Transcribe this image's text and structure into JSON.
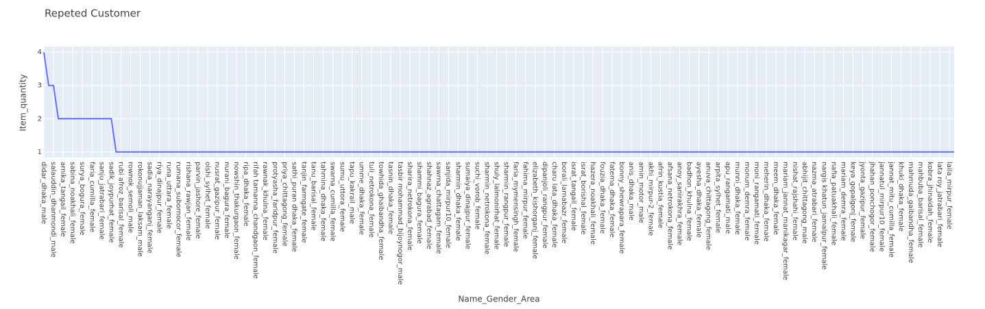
{
  "chart_data": {
    "type": "line",
    "title": "Repeted Customer",
    "x_label": "Name_Gender_Area",
    "y_label": "Item_quantity",
    "categories": [
      "didar_dhaka_male",
      null,
      "salauddin_dhanmondi_male",
      null,
      "arnika_tangail_female",
      null,
      "sabina_noakhali_female",
      null,
      "surya_bogura_female",
      null,
      "faria_cumilla_female",
      null,
      "sanju_jatrabari_female",
      null,
      "sadik_joypurhat_female",
      null,
      "rubi afroz_barisal_female",
      null,
      "rownok_semoli_male",
      null,
      "rokonujjaman_laksam_male",
      null,
      "sadia_narayanganj_female",
      null,
      "riya_dinajpur_female",
      null,
      "runa_uttara_female",
      null,
      "rumana_subornocor_female",
      null,
      "rishana_rawjan_female",
      null,
      "parvin_jashore_female",
      null,
      "oishi_sylhet_female",
      null,
      "nusrat_gazipur_female",
      null,
      "nurani_bagura_female",
      null,
      "nowshin_thakurgaon_female",
      null,
      "ripa_dhaka_female",
      null,
      "rifah tamanna_chandgaon_female",
      null,
      "rawnak_khulna_female",
      null,
      "protyasha_faridpur_female",
      null,
      "priya_chittagong_female",
      null,
      "sathi_puran dhaka_female",
      null,
      "tanjin_farmgate_female",
      null,
      "tanu_barisal_female",
      null,
      "tahmina_dhaka_female",
      null,
      "swarna_cumilla_female",
      null,
      "sumu_uttora_female",
      null,
      "tapu_kakrail_male",
      null,
      "umme_dhaka_female",
      null,
      "tuli_netrokona_female",
      null,
      "towhida_ghaibandha_female",
      null,
      "tasnin_dhaka_female",
      null,
      "tasbir mohammad_bijoynogor_male",
      null,
      "sharira_netrokona_female",
      null,
      "shammi_bagura_female",
      null,
      "shahnaz_agrabad_female",
      null,
      "sawrna_chattagam_female",
      null,
      "sanjida_mirpur10_female",
      null,
      "sharmin_dhaka_female",
      null,
      "sumaiya_dinajpur_female",
      null,
      "suchi_vorob_female",
      null,
      "sharmin_netrokona_female",
      null,
      "shuly_lalmonirhat_female",
      null,
      "sharmin_rangpur_female",
      null,
      "faria_mymensingh_female",
      null,
      "fahima_mirpur_female",
      null,
      "elizabeth_kishorganj_female",
      null,
      "dipanjoli_rangpur_female",
      null,
      "charu lata_dhaka_female",
      null,
      "borali_lamabazr_female",
      null,
      "israt_tangail_female",
      null,
      "israt_borishal_female",
      null,
      "hazera_noakhali_female",
      null,
      "fouzia_dhaka_female",
      null,
      "fatema_dhaka_female",
      null,
      "bonny_shewrapara_female",
      null,
      "anis_dhaka_male",
      null,
      "amin_motor_male",
      null,
      "akhi_mirpur-2_female",
      null,
      "afrin_kustia_female",
      null,
      "afsana_netrokona_female",
      null,
      "anoy_sanirakhra_female",
      null,
      "badhon_khulna_female",
      null,
      "ayesha_dhaka_female",
      null,
      "anuva_chittagong_female",
      null,
      "arpita_sylhet_female",
      null,
      "apu_rangamati_male",
      null,
      "munni_dhaka_female",
      null,
      "monum_demra_female",
      null,
      "moni_rangamati_female",
      null,
      "meherin_dhaka_female",
      null,
      "meem_dhaka_female",
      null,
      "mariam_jannat_manikagar_female",
      null,
      "nishat_rajshahi_female",
      null,
      "abhijit_chittagong_male",
      null,
      "nazma_atrabari_female",
      null,
      "nargis khatun_jamalpur_female",
      null,
      "nafia_patuakhali_female",
      null,
      "mariam_demra_female",
      null,
      "keya_gopalgonj_female",
      null,
      "jyonta_gazipur_female",
      null,
      "jhahan_ponchogor_female",
      null,
      "jannatul_mirpur10_female",
      null,
      "jannat_mitu_cumilla_female",
      null,
      "khuki_dhaka_female",
      null,
      "mahmuda_gaibandha_female",
      null,
      "mahbuba_barisal_female",
      null,
      "kobra_jhinaidah_female",
      null,
      "lata roy_jatrabari_female",
      null,
      "laila_mirpur_female",
      null
    ],
    "values": [
      4,
      3,
      3,
      2,
      2,
      2,
      2,
      2,
      2,
      2,
      2,
      2,
      2,
      2,
      2,
      1,
      1,
      1,
      1,
      1,
      1,
      1,
      1,
      1,
      1,
      1,
      1,
      1,
      1,
      1,
      1,
      1,
      1,
      1,
      1,
      1,
      1,
      1,
      1,
      1,
      1,
      1,
      1,
      1,
      1,
      1,
      1,
      1,
      1,
      1,
      1,
      1,
      1,
      1,
      1,
      1,
      1,
      1,
      1,
      1,
      1,
      1,
      1,
      1,
      1,
      1,
      1,
      1,
      1,
      1,
      1,
      1,
      1,
      1,
      1,
      1,
      1,
      1,
      1,
      1,
      1,
      1,
      1,
      1,
      1,
      1,
      1,
      1,
      1,
      1,
      1,
      1,
      1,
      1,
      1,
      1,
      1,
      1,
      1,
      1,
      1,
      1,
      1,
      1,
      1,
      1,
      1,
      1,
      1,
      1,
      1,
      1,
      1,
      1,
      1,
      1,
      1,
      1,
      1,
      1,
      1,
      1,
      1,
      1,
      1,
      1,
      1,
      1,
      1,
      1,
      1,
      1,
      1,
      1,
      1,
      1,
      1,
      1,
      1,
      1,
      1,
      1,
      1,
      1,
      1,
      1,
      1,
      1,
      1,
      1,
      1,
      1,
      1,
      1,
      1,
      1,
      1,
      1,
      1,
      1,
      1,
      1,
      1,
      1,
      1,
      1,
      1,
      1,
      1,
      1,
      1,
      1,
      1,
      1,
      1,
      1,
      1,
      1,
      1,
      1,
      1,
      1,
      1,
      1,
      1,
      1,
      1,
      1,
      1,
      1
    ],
    "color": "#636efa",
    "ylim": [
      0.83,
      4.17
    ],
    "yticks": [
      1,
      2,
      3,
      4
    ],
    "grid": true
  }
}
